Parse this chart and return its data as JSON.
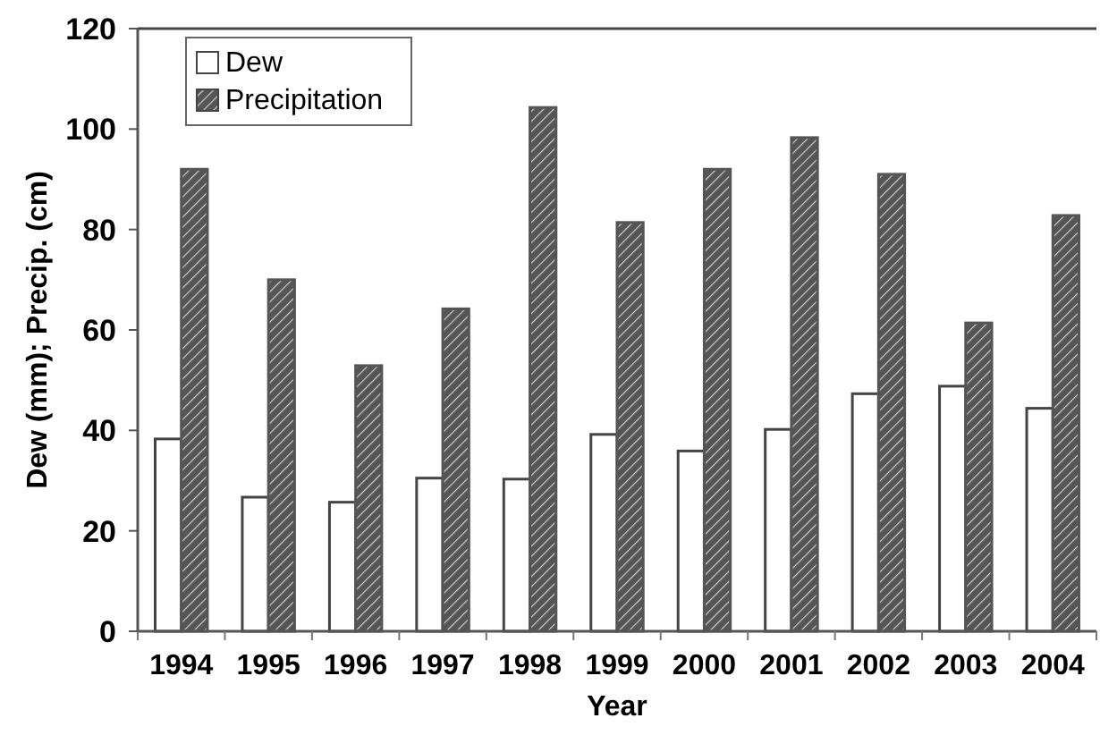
{
  "chart_data": {
    "type": "bar",
    "xlabel": "Year",
    "ylabel": "Dew (mm); Precip. (cm)",
    "categories": [
      "1994",
      "1995",
      "1996",
      "1997",
      "1998",
      "1999",
      "2000",
      "2001",
      "2002",
      "2003",
      "2004"
    ],
    "series": [
      {
        "name": "Dew",
        "color": "#ffffff",
        "values": [
          38.3,
          26.7,
          25.7,
          30.5,
          30.3,
          39.2,
          35.9,
          40.2,
          47.3,
          48.8,
          44.4
        ]
      },
      {
        "name": "Precipitation",
        "color": "#555555",
        "values": [
          92,
          70,
          52.9,
          64.2,
          104.3,
          81.4,
          92,
          98.3,
          91,
          61.4,
          82.8
        ]
      }
    ],
    "ylim": [
      0,
      120
    ],
    "yticks": [
      0,
      20,
      40,
      60,
      80,
      100,
      120
    ],
    "grid": false,
    "legend": "top left"
  }
}
